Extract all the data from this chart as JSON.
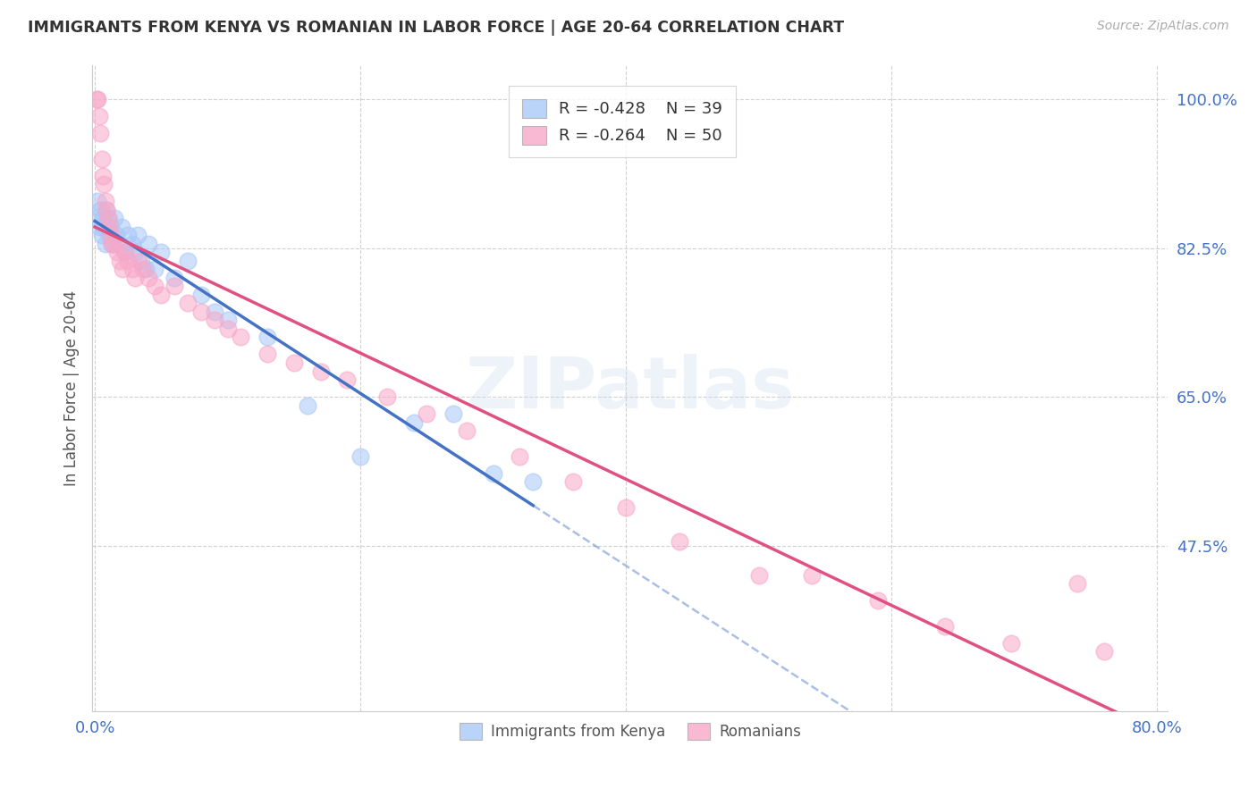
{
  "title": "IMMIGRANTS FROM KENYA VS ROMANIAN IN LABOR FORCE | AGE 20-64 CORRELATION CHART",
  "source": "Source: ZipAtlas.com",
  "ylabel": "In Labor Force | Age 20-64",
  "xmin": 0.0,
  "xmax": 0.8,
  "ymin": 0.28,
  "ymax": 1.04,
  "yticks": [
    1.0,
    0.825,
    0.65,
    0.475
  ],
  "ytick_labels": [
    "100.0%",
    "82.5%",
    "65.0%",
    "47.5%"
  ],
  "xticks": [
    0.0,
    0.2,
    0.4,
    0.6,
    0.8
  ],
  "xtick_labels": [
    "0.0%",
    "",
    "",
    "",
    "80.0%"
  ],
  "kenya_R": -0.428,
  "kenya_N": 39,
  "romania_R": -0.264,
  "romania_N": 50,
  "kenya_color": "#a8c8f8",
  "romania_color": "#f8a8c8",
  "kenya_line_color": "#4472c4",
  "romania_line_color": "#e05080",
  "background_color": "#ffffff",
  "watermark": "ZIPatlas",
  "kenya_x": [
    0.001,
    0.002,
    0.003,
    0.004,
    0.005,
    0.006,
    0.007,
    0.008,
    0.009,
    0.01,
    0.011,
    0.012,
    0.013,
    0.015,
    0.016,
    0.018,
    0.02,
    0.022,
    0.025,
    0.028,
    0.03,
    0.032,
    0.035,
    0.038,
    0.04,
    0.045,
    0.05,
    0.06,
    0.07,
    0.08,
    0.09,
    0.1,
    0.13,
    0.16,
    0.2,
    0.24,
    0.27,
    0.3,
    0.33
  ],
  "kenya_y": [
    0.86,
    0.88,
    0.85,
    0.87,
    0.84,
    0.86,
    0.85,
    0.83,
    0.87,
    0.86,
    0.84,
    0.85,
    0.83,
    0.86,
    0.84,
    0.83,
    0.85,
    0.82,
    0.84,
    0.83,
    0.82,
    0.84,
    0.81,
    0.8,
    0.83,
    0.8,
    0.82,
    0.79,
    0.81,
    0.77,
    0.75,
    0.74,
    0.72,
    0.64,
    0.58,
    0.62,
    0.63,
    0.56,
    0.55
  ],
  "romania_x": [
    0.001,
    0.002,
    0.003,
    0.004,
    0.005,
    0.006,
    0.007,
    0.008,
    0.009,
    0.01,
    0.011,
    0.012,
    0.013,
    0.015,
    0.017,
    0.019,
    0.021,
    0.023,
    0.025,
    0.028,
    0.03,
    0.033,
    0.036,
    0.04,
    0.045,
    0.05,
    0.06,
    0.07,
    0.08,
    0.09,
    0.1,
    0.11,
    0.13,
    0.15,
    0.17,
    0.19,
    0.22,
    0.25,
    0.28,
    0.32,
    0.36,
    0.4,
    0.44,
    0.5,
    0.54,
    0.59,
    0.64,
    0.69,
    0.74,
    0.76
  ],
  "romania_y": [
    1.0,
    1.0,
    0.98,
    0.96,
    0.93,
    0.91,
    0.9,
    0.88,
    0.87,
    0.86,
    0.85,
    0.84,
    0.83,
    0.83,
    0.82,
    0.81,
    0.8,
    0.82,
    0.81,
    0.8,
    0.79,
    0.81,
    0.8,
    0.79,
    0.78,
    0.77,
    0.78,
    0.76,
    0.75,
    0.74,
    0.73,
    0.72,
    0.7,
    0.69,
    0.68,
    0.67,
    0.65,
    0.63,
    0.61,
    0.58,
    0.55,
    0.52,
    0.48,
    0.44,
    0.44,
    0.41,
    0.38,
    0.36,
    0.43,
    0.35
  ]
}
